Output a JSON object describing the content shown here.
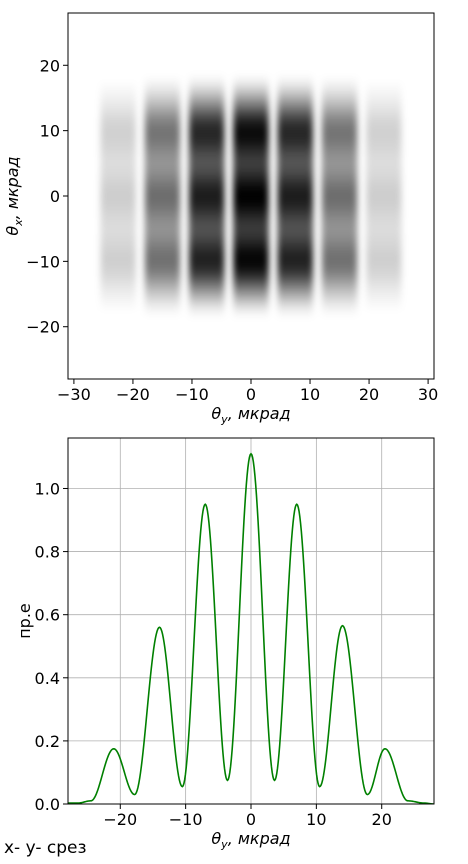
{
  "caption": "x- y- срез",
  "chart_data": [
    {
      "type": "heatmap",
      "colormap": "gray_r",
      "xlabel": "θ_y, мкрад",
      "ylabel": "θ_x, мкрад",
      "xlim": [
        -31,
        31
      ],
      "ylim": [
        -28,
        28
      ],
      "xticks": [
        "−30",
        "−20",
        "−10",
        "0",
        "10",
        "20",
        "30"
      ],
      "yticks": [
        "−20",
        "−10",
        "0",
        "10",
        "20"
      ],
      "fringe_centers_y": [
        -22.5,
        -15,
        -7.5,
        0,
        7.5,
        15,
        22.5
      ],
      "fringe_peak_intensity": [
        0.16,
        0.51,
        0.86,
        1.0,
        0.86,
        0.51,
        0.16
      ],
      "vertical_modulation_maxima_x": [
        -10,
        0,
        10
      ],
      "extent_x": [
        -20,
        20
      ]
    },
    {
      "type": "line",
      "xlabel": "θ_y, мкрад",
      "ylabel": "пр.е",
      "xlim": [
        -28,
        28
      ],
      "ylim": [
        0,
        1.16
      ],
      "grid": true,
      "color": "#008000",
      "xticks": [
        "−20",
        "−10",
        "0",
        "10",
        "20"
      ],
      "yticks": [
        "0.0",
        "0.2",
        "0.4",
        "0.6",
        "0.8",
        "1.0"
      ],
      "peaks": [
        {
          "x": -21.0,
          "y": 0.175
        },
        {
          "x": -14.0,
          "y": 0.56
        },
        {
          "x": -7.0,
          "y": 0.95
        },
        {
          "x": 0.0,
          "y": 1.11
        },
        {
          "x": 7.0,
          "y": 0.95
        },
        {
          "x": 14.0,
          "y": 0.565
        },
        {
          "x": 20.5,
          "y": 0.175
        }
      ],
      "minima": [
        {
          "x": -17.8,
          "y": 0.03
        },
        {
          "x": -10.5,
          "y": 0.055
        },
        {
          "x": -3.6,
          "y": 0.075
        },
        {
          "x": 3.6,
          "y": 0.075
        },
        {
          "x": 10.5,
          "y": 0.055
        },
        {
          "x": 17.8,
          "y": 0.03
        }
      ],
      "tail_level": 0.003
    }
  ]
}
